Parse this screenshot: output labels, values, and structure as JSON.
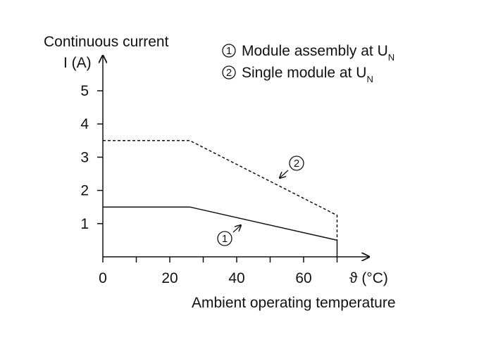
{
  "chart_data": {
    "type": "line",
    "ylabel_line1": "Continuous current",
    "ylabel_line2": "I (A)",
    "xlabel": "Ambient operating temperature",
    "x_axis_symbol": "ϑ (°C)",
    "xlim": [
      0,
      80
    ],
    "ylim": [
      0,
      5.8
    ],
    "x_ticks": [
      0,
      20,
      40,
      60
    ],
    "x_minor_ticks": [
      10,
      30,
      50,
      70
    ],
    "y_ticks": [
      1,
      2,
      3,
      4,
      5
    ],
    "grid": false,
    "legend_position": "top-right",
    "series": [
      {
        "marker": "1",
        "name": "Module assembly at U",
        "name_subscript": "N",
        "line_style": "solid",
        "x": [
          0,
          26,
          70,
          70
        ],
        "y": [
          1.5,
          1.5,
          0.5,
          0
        ]
      },
      {
        "marker": "2",
        "name": "Single module at U",
        "name_subscript": "N",
        "line_style": "dashed",
        "x": [
          0,
          26,
          70,
          70
        ],
        "y": [
          3.5,
          3.5,
          1.25,
          0.5
        ]
      }
    ]
  }
}
